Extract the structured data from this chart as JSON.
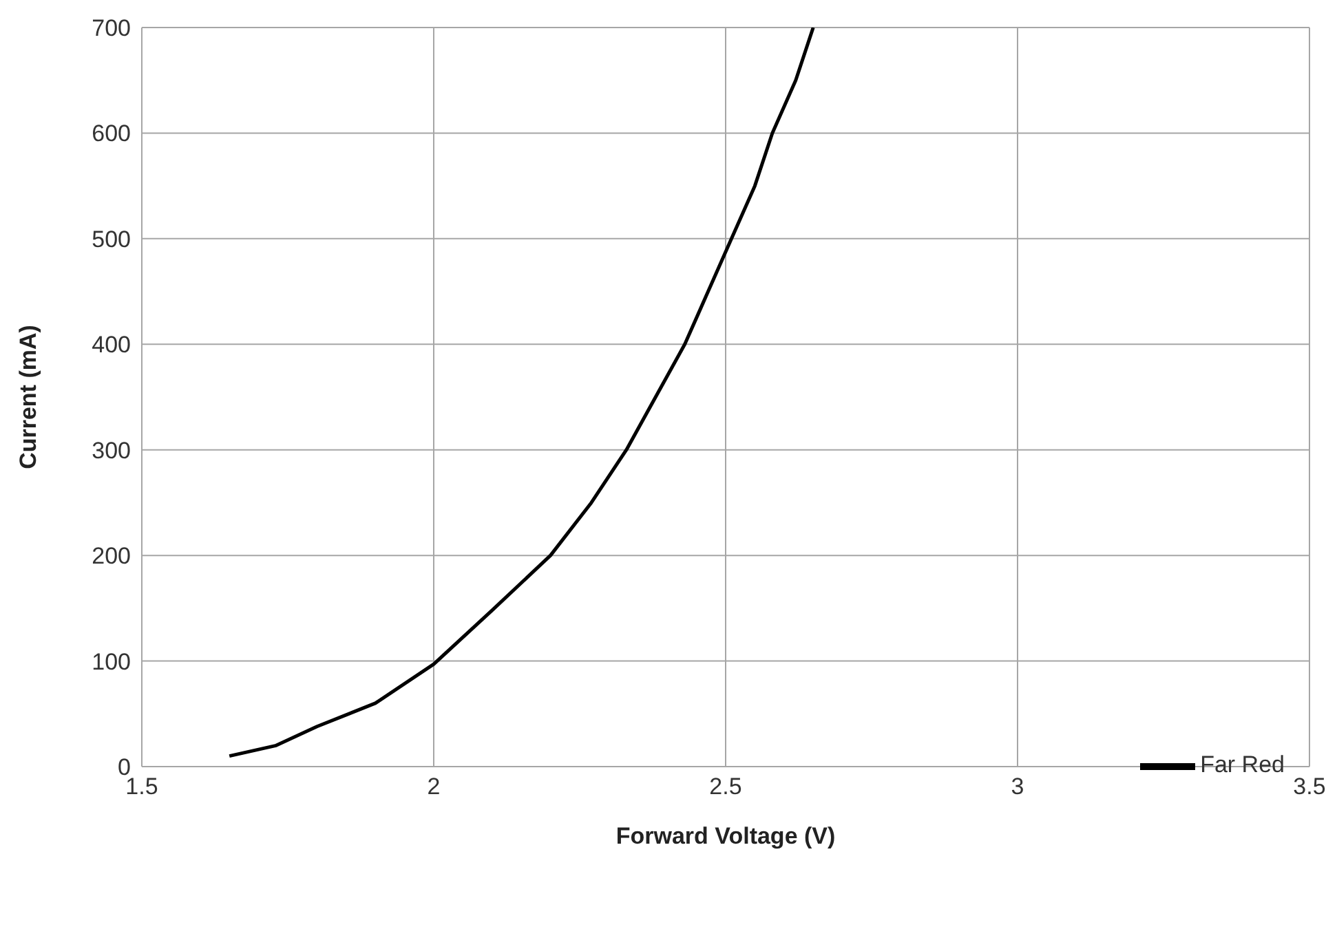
{
  "chart_data": {
    "type": "line",
    "xlabel": "Forward Voltage  (V)",
    "ylabel": "Current (mA)",
    "xlim": [
      1.5,
      3.5
    ],
    "xticks": [
      1.5,
      2,
      2.5,
      3,
      3.5
    ],
    "ylim": [
      0,
      700
    ],
    "yticks": [
      0,
      100,
      200,
      300,
      400,
      500,
      600,
      700
    ],
    "grid": true,
    "legend": "bottom right",
    "marker": "none",
    "line_style": "solid",
    "series": [
      {
        "name": "Far Red",
        "color": "#000000",
        "x": [
          1.65,
          1.73,
          1.8,
          1.9,
          2.0,
          2.1,
          2.2,
          2.27,
          2.33,
          2.38,
          2.43,
          2.47,
          2.51,
          2.55,
          2.58,
          2.62,
          2.65
        ],
        "values": [
          10,
          20,
          38,
          60,
          97,
          148,
          200,
          250,
          300,
          350,
          400,
          450,
          500,
          550,
          600,
          650,
          700
        ]
      }
    ]
  }
}
